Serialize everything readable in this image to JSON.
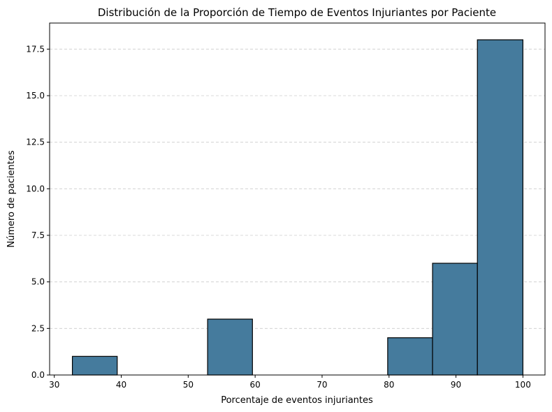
{
  "chart_data": {
    "type": "bar",
    "title": "Distribución de la Proporción de Tiempo de Eventos Injuriantes por Paciente",
    "xlabel": "Porcentaje de eventos injuriantes",
    "ylabel": "Número de pacientes",
    "xlim": [
      29.3,
      103.3
    ],
    "ylim": [
      0,
      18.9
    ],
    "xticks": [
      30,
      40,
      50,
      60,
      70,
      80,
      90,
      100
    ],
    "yticks": [
      0.0,
      2.5,
      5.0,
      7.5,
      10.0,
      12.5,
      15.0,
      17.5
    ],
    "ytick_labels": [
      "0.0",
      "2.5",
      "5.0",
      "7.5",
      "10.0",
      "12.5",
      "15.0",
      "17.5"
    ],
    "bins": [
      {
        "x0": 32.7,
        "x1": 39.4,
        "count": 1
      },
      {
        "x0": 39.4,
        "x1": 46.1,
        "count": 0
      },
      {
        "x0": 46.1,
        "x1": 52.9,
        "count": 0
      },
      {
        "x0": 52.9,
        "x1": 59.6,
        "count": 3
      },
      {
        "x0": 59.6,
        "x1": 66.3,
        "count": 0
      },
      {
        "x0": 66.3,
        "x1": 73.0,
        "count": 0
      },
      {
        "x0": 73.0,
        "x1": 79.8,
        "count": 0
      },
      {
        "x0": 79.8,
        "x1": 86.5,
        "count": 2
      },
      {
        "x0": 86.5,
        "x1": 93.2,
        "count": 6
      },
      {
        "x0": 93.2,
        "x1": 100.0,
        "count": 18
      }
    ],
    "grid": "y-dashed",
    "bar_color": "#457b9d",
    "edge_color": "#000000"
  }
}
